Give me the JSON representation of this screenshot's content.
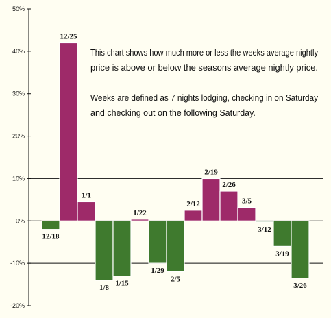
{
  "chart_data": {
    "type": "bar",
    "categories": [
      "12/18",
      "12/25",
      "1/1",
      "1/8",
      "1/15",
      "1/22",
      "1/29",
      "2/5",
      "2/12",
      "2/19",
      "2/26",
      "3/5",
      "3/12",
      "3/19",
      "3/26"
    ],
    "values": [
      -2,
      42,
      4.5,
      -14,
      -13,
      0.4,
      -10,
      -12,
      2.5,
      10,
      7,
      3.2,
      -0.2,
      -6,
      -13.5
    ],
    "ylim": [
      -20,
      50
    ],
    "yticks": [
      "-20%",
      "-10%",
      "0%",
      "10%",
      "20%",
      "30%",
      "40%",
      "50%"
    ],
    "ytick_values": [
      -20,
      -10,
      0,
      10,
      20,
      30,
      40,
      50
    ],
    "reference_lines": [
      -10,
      0,
      10
    ],
    "title": "",
    "xlabel": "",
    "ylabel": "",
    "colors": {
      "positive": "#9e2a69",
      "negative": "#3f7a2e",
      "edge": "#ffffff",
      "background": "#fffef2"
    },
    "annotation": {
      "lines": [
        "This chart shows how much more or less the weeks average nightly",
        "price is above or below the seasons average nightly price.",
        "",
        "Weeks are defined as 7 nights lodging, checking in on Saturday",
        "and checking out on the following Saturday."
      ]
    }
  }
}
